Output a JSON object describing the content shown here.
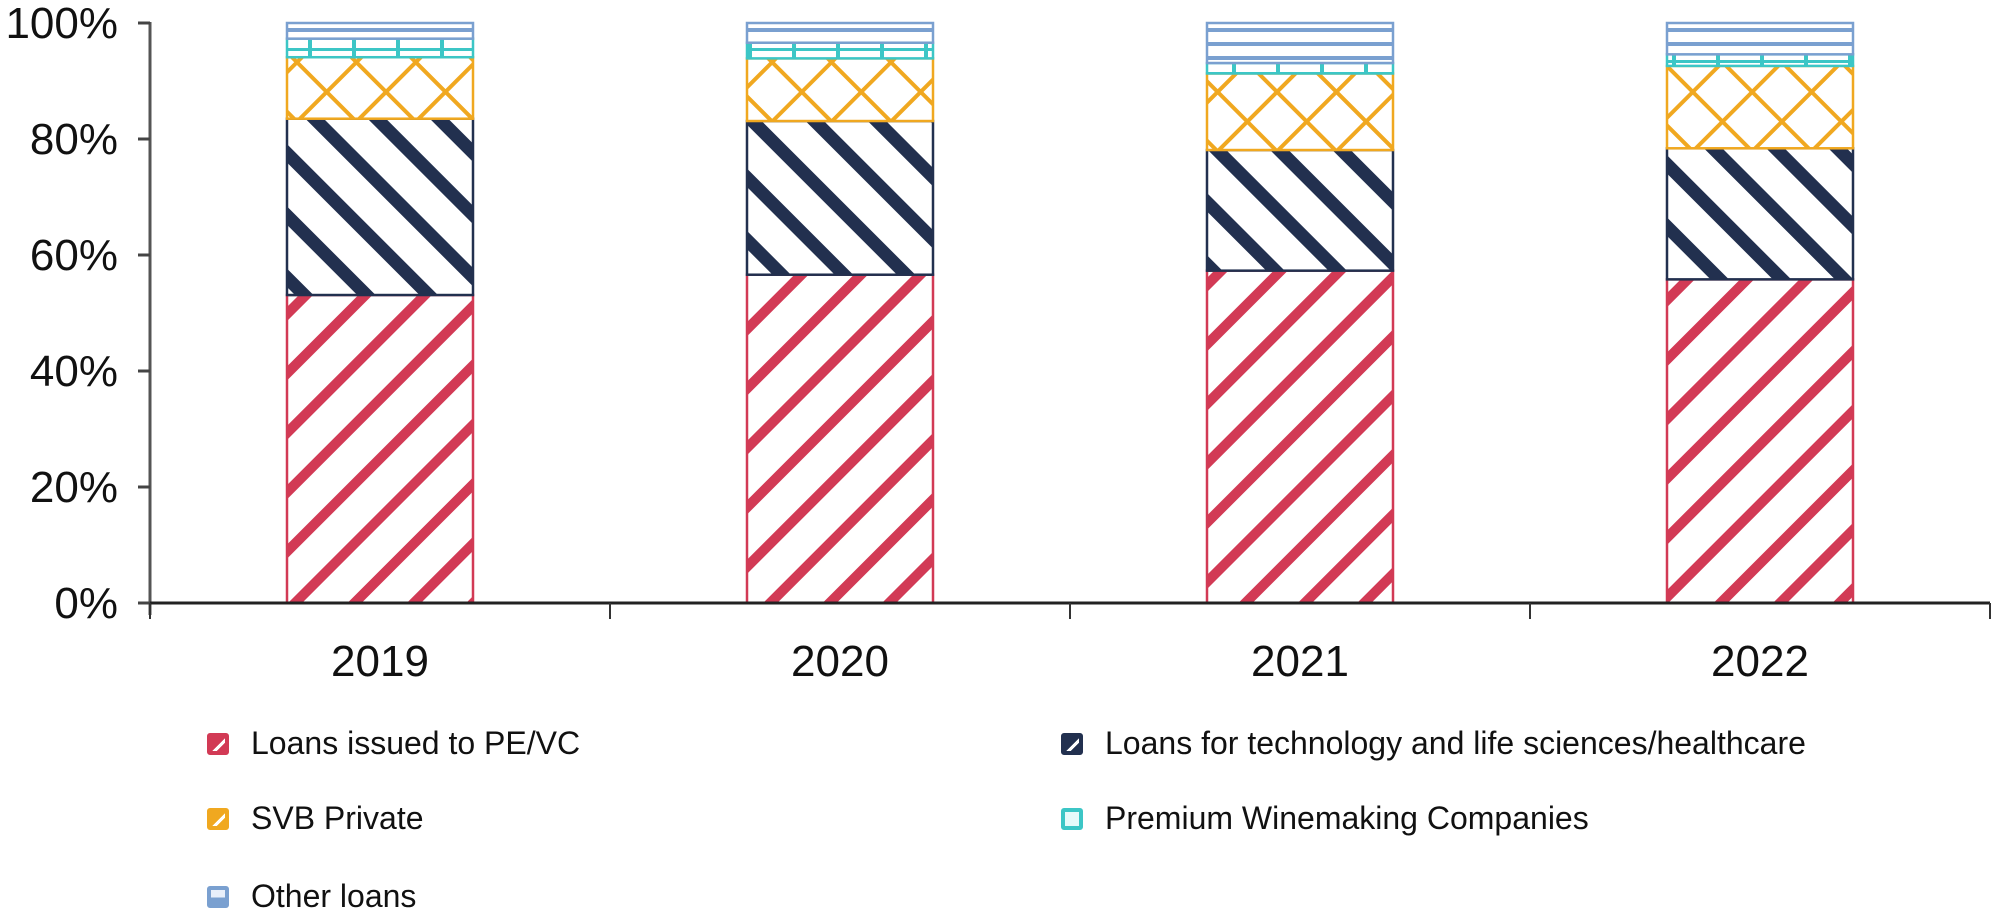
{
  "chart_data": {
    "type": "bar",
    "stacked": true,
    "normalized": true,
    "title": "",
    "xlabel": "",
    "ylabel": "",
    "ylim": [
      0,
      100
    ],
    "y_ticks": [
      "0%",
      "20%",
      "40%",
      "60%",
      "80%",
      "100%"
    ],
    "categories": [
      "2019",
      "2020",
      "2021",
      "2022"
    ],
    "series": [
      {
        "name": "Loans issued to PE/VC",
        "color": "#d23a55",
        "pattern": "diagonal-down",
        "values": [
          53.1,
          56.6,
          57.3,
          55.8
        ]
      },
      {
        "name": "Loans for technology and life sciences/healthcare",
        "color": "#22304f",
        "pattern": "diagonal-up",
        "values": [
          30.4,
          26.5,
          20.8,
          22.6
        ]
      },
      {
        "name": "SVB Private",
        "color": "#f0a820",
        "pattern": "crosshatch",
        "values": [
          10.6,
          10.8,
          13.2,
          14.2
        ]
      },
      {
        "name": "Premium Winemaking Companies",
        "color": "#3cc6c6",
        "pattern": "brick",
        "values": [
          3.2,
          2.7,
          1.8,
          2.0
        ]
      },
      {
        "name": "Other loans",
        "color": "#7aa0d0",
        "pattern": "horizontal",
        "values": [
          2.7,
          3.4,
          6.9,
          5.4
        ]
      }
    ],
    "grid": false,
    "legend_position": "bottom"
  },
  "legend": {
    "items": [
      {
        "label": "Loans issued to PE/VC",
        "color": "#d23a55"
      },
      {
        "label": "Loans for technology and life sciences/healthcare",
        "color": "#22304f"
      },
      {
        "label": "SVB Private",
        "color": "#f0a820"
      },
      {
        "label": "Premium Winemaking Companies",
        "color": "#3cc6c6"
      },
      {
        "label": "Other loans",
        "color": "#7aa0d0"
      }
    ]
  }
}
